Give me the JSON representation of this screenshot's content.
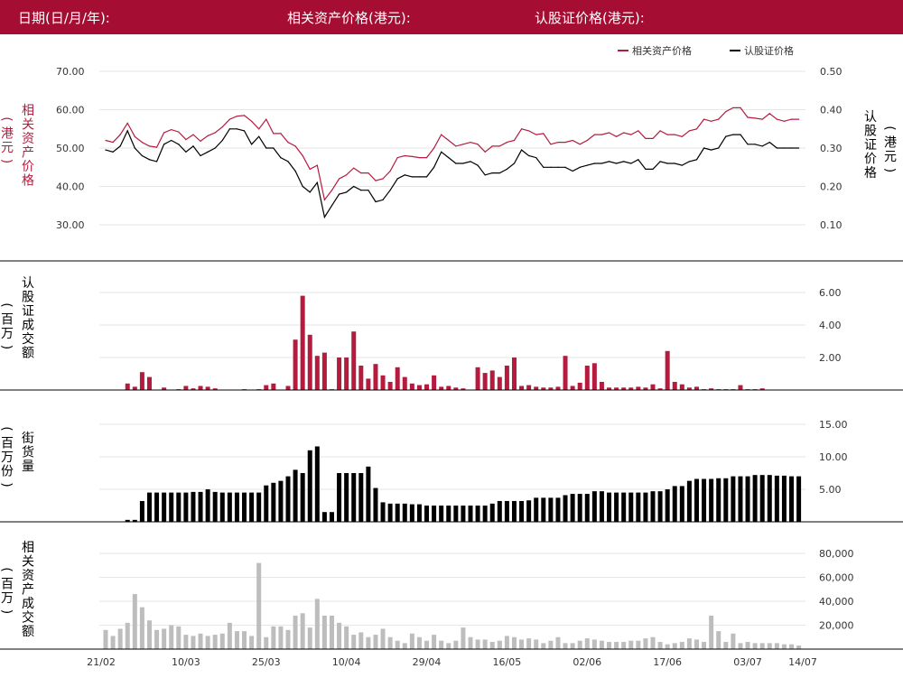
{
  "header": {
    "date_label": "日期(日/月/年):",
    "asset_price_label": "相关资产价格(港元):",
    "warrant_price_label": "认股证价格(港元):"
  },
  "colors": {
    "header_bg": "#a50d32",
    "asset_series": "#b51b3f",
    "warrant_series": "#000000",
    "asset_turnover_bars": "#bdbdbd"
  },
  "chart_data": [
    {
      "type": "line",
      "legend": [
        "相关资产价格",
        "认股证价格"
      ],
      "legend_position": "top-right",
      "ylabel_left": "相关资产价格 (港元)",
      "ylabel_right": "认股证价格 (港元)",
      "yticks_left": [
        "70.00",
        "60.00",
        "50.00",
        "40.00",
        "30.00"
      ],
      "yticks_right": [
        "0.50",
        "0.40",
        "0.30",
        "0.20",
        "0.10"
      ],
      "ylim_left": [
        25,
        75
      ],
      "ylim_right": [
        0.05,
        0.55
      ],
      "grid": true,
      "series": [
        {
          "name": "相关资产价格",
          "axis": "left",
          "values": [
            52.0,
            51.5,
            53.5,
            56.5,
            53.0,
            51.5,
            50.5,
            50.2,
            54.0,
            54.8,
            54.2,
            52.2,
            53.5,
            51.8,
            53.2,
            54.0,
            55.5,
            57.5,
            58.3,
            58.5,
            57.0,
            55.0,
            57.5,
            53.8,
            53.8,
            51.5,
            50.5,
            48.0,
            44.5,
            45.5,
            36.5,
            39.0,
            42.0,
            43.0,
            44.8,
            43.5,
            43.5,
            41.5,
            42.0,
            44.0,
            47.5,
            48.0,
            47.8,
            47.5,
            47.5,
            50.0,
            53.5,
            52.0,
            50.5,
            51.0,
            51.5,
            51.0,
            49.0,
            50.5,
            50.5,
            51.5,
            52.0,
            55.0,
            54.5,
            53.5,
            53.8,
            51.0,
            51.5,
            51.5,
            52.0,
            51.0,
            52.0,
            53.5,
            53.5,
            54.0,
            53.0,
            54.0,
            53.5,
            54.5,
            52.5,
            52.5,
            54.5,
            53.5,
            53.5,
            53.0,
            54.5,
            55.0,
            57.5,
            57.0,
            57.5,
            59.5,
            60.5,
            60.5,
            58.0,
            57.8,
            57.5,
            59.0,
            57.5,
            57.0,
            57.5,
            57.5
          ]
        },
        {
          "name": "认股证价格",
          "axis": "right",
          "values": [
            0.295,
            0.29,
            0.305,
            0.345,
            0.3,
            0.28,
            0.27,
            0.265,
            0.31,
            0.32,
            0.31,
            0.29,
            0.305,
            0.28,
            0.29,
            0.3,
            0.32,
            0.35,
            0.35,
            0.345,
            0.31,
            0.33,
            0.3,
            0.3,
            0.275,
            0.265,
            0.24,
            0.2,
            0.185,
            0.21,
            0.12,
            0.15,
            0.18,
            0.185,
            0.2,
            0.19,
            0.19,
            0.16,
            0.165,
            0.19,
            0.22,
            0.23,
            0.225,
            0.225,
            0.225,
            0.25,
            0.29,
            0.275,
            0.26,
            0.26,
            0.265,
            0.255,
            0.23,
            0.235,
            0.235,
            0.245,
            0.26,
            0.295,
            0.28,
            0.275,
            0.25,
            0.25,
            0.25,
            0.25,
            0.24,
            0.25,
            0.255,
            0.26,
            0.26,
            0.265,
            0.26,
            0.265,
            0.26,
            0.27,
            0.245,
            0.245,
            0.265,
            0.26,
            0.26,
            0.255,
            0.265,
            0.27,
            0.3,
            0.295,
            0.3,
            0.33,
            0.335,
            0.335,
            0.31,
            0.31,
            0.305,
            0.315,
            0.3,
            0.3,
            0.3,
            0.3
          ]
        }
      ]
    },
    {
      "type": "bar",
      "ylabel": "认股证成交额 (百万)",
      "yticks": [
        "6.00",
        "4.00",
        "2.00"
      ],
      "ylim": [
        0,
        7.5
      ],
      "values": [
        0,
        0,
        0,
        0.4,
        0.2,
        1.1,
        0.8,
        0,
        0.15,
        0,
        0.05,
        0.25,
        0.1,
        0.25,
        0.2,
        0.1,
        0,
        0,
        0,
        0.05,
        0,
        0.05,
        0.3,
        0.4,
        0,
        0.25,
        3.1,
        5.8,
        3.4,
        2.1,
        2.3,
        0.05,
        2.0,
        2.0,
        3.6,
        1.5,
        0.7,
        1.6,
        0.9,
        0.5,
        1.4,
        0.8,
        0.4,
        0.3,
        0.35,
        0.9,
        0.2,
        0.25,
        0.15,
        0.1,
        0,
        1.4,
        1.05,
        1.2,
        0.8,
        1.5,
        2.0,
        0.25,
        0.3,
        0.2,
        0.15,
        0.15,
        0.2,
        2.1,
        0.25,
        0.45,
        1.5,
        1.65,
        0.5,
        0.15,
        0.15,
        0.15,
        0.15,
        0.2,
        0.15,
        0.35,
        0.1,
        2.4,
        0.5,
        0.35,
        0.15,
        0.2,
        0.05,
        0.1,
        0.05,
        0.05,
        0.05,
        0.3,
        0.05,
        0.05,
        0.1,
        0,
        0,
        0,
        0,
        0
      ]
    },
    {
      "type": "bar",
      "ylabel": "街货量 (百万份)",
      "yticks": [
        "15.00",
        "10.00",
        "5.00"
      ],
      "ylim": [
        0,
        16.5
      ],
      "values": [
        0,
        0,
        0,
        0.3,
        0.3,
        3.2,
        4.5,
        4.5,
        4.5,
        4.5,
        4.5,
        4.5,
        4.6,
        4.6,
        5.0,
        4.6,
        4.5,
        4.5,
        4.5,
        4.5,
        4.5,
        4.5,
        5.6,
        6.0,
        6.3,
        7.0,
        8.0,
        7.5,
        11.0,
        11.6,
        1.5,
        1.5,
        7.5,
        7.5,
        7.5,
        7.5,
        8.5,
        5.2,
        3.0,
        2.8,
        2.8,
        2.8,
        2.7,
        2.7,
        2.5,
        2.5,
        2.5,
        2.5,
        2.5,
        2.5,
        2.5,
        2.5,
        2.5,
        2.8,
        3.2,
        3.2,
        3.2,
        3.2,
        3.3,
        3.7,
        3.7,
        3.7,
        3.7,
        4.1,
        4.3,
        4.3,
        4.3,
        4.7,
        4.7,
        4.5,
        4.5,
        4.5,
        4.5,
        4.5,
        4.5,
        4.7,
        4.7,
        5.0,
        5.5,
        5.5,
        6.3,
        6.6,
        6.6,
        6.6,
        6.7,
        6.7,
        7.0,
        7.0,
        7.0,
        7.2,
        7.2,
        7.2,
        7.1,
        7.1,
        7.0,
        7.0
      ]
    },
    {
      "type": "bar",
      "ylabel": "相关资产成交额 (百万)",
      "yticks": [
        "80,000",
        "60,000",
        "40,000",
        "20,000"
      ],
      "ylim": [
        0,
        95000
      ],
      "values": [
        16000,
        11000,
        17000,
        22000,
        46000,
        35000,
        24000,
        16000,
        17000,
        20000,
        19000,
        12000,
        11000,
        13000,
        11000,
        12000,
        13000,
        22000,
        15000,
        15000,
        11000,
        72000,
        10000,
        19000,
        19000,
        16000,
        28000,
        30000,
        18000,
        42000,
        28000,
        28000,
        22000,
        19000,
        12000,
        14000,
        10000,
        12000,
        17000,
        10000,
        7000,
        5000,
        13000,
        10000,
        7000,
        12000,
        7000,
        5000,
        7000,
        18000,
        10000,
        8000,
        8000,
        6000,
        7000,
        11000,
        10000,
        8000,
        9000,
        8000,
        5000,
        7000,
        10000,
        5000,
        5000,
        7000,
        9000,
        8000,
        7000,
        6000,
        6000,
        6000,
        7000,
        7000,
        9000,
        10000,
        6000,
        4000,
        5000,
        6000,
        9000,
        8000,
        6000,
        28000,
        15000,
        6000,
        13000,
        5000,
        6000,
        5000,
        5000,
        5000,
        5000,
        4000,
        4000,
        3000
      ]
    }
  ],
  "x_axis": {
    "ticks": [
      {
        "label": "21/02",
        "index": 0
      },
      {
        "label": "10/03",
        "index": 11
      },
      {
        "label": "25/03",
        "index": 22
      },
      {
        "label": "10/04",
        "index": 33
      },
      {
        "label": "29/04",
        "index": 44
      },
      {
        "label": "16/05",
        "index": 55
      },
      {
        "label": "02/06",
        "index": 66
      },
      {
        "label": "17/06",
        "index": 77
      },
      {
        "label": "03/07",
        "index": 88
      },
      {
        "label": "14/07",
        "index": 95
      }
    ]
  }
}
